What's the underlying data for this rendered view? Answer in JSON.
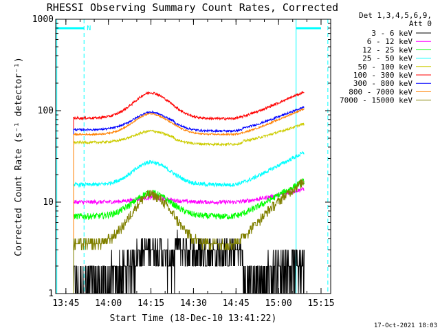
{
  "chart_data": {
    "type": "line",
    "title": "RHESSI Observing Summary Count Rates, Corrected",
    "xlabel": "Start Time (18-Dec-10 13:41:22)",
    "ylabel": "Corrected Count Rate (s⁻¹ detector⁻¹)",
    "yscale": "log",
    "ylim": [
      1,
      1000
    ],
    "xlim_minutes": [
      0,
      97
    ],
    "x_ticks": [
      {
        "label": "13:45",
        "minute": 3.6
      },
      {
        "label": "14:00",
        "minute": 18.6
      },
      {
        "label": "14:15",
        "minute": 33.6
      },
      {
        "label": "14:30",
        "minute": 48.6
      },
      {
        "label": "14:45",
        "minute": 63.6
      },
      {
        "label": "15:00",
        "minute": 78.6
      },
      {
        "label": "15:15",
        "minute": 93.6
      }
    ],
    "y_ticks": [
      {
        "label": "1",
        "value": 1
      },
      {
        "label": "10",
        "value": 10
      },
      {
        "label": "100",
        "value": 100
      },
      {
        "label": "1000",
        "value": 1000
      }
    ],
    "legend_header": [
      "Det 1,3,4,5,6,9,",
      "Att 0"
    ],
    "data_start_minute": 6.3,
    "data_end_minute": 87.7,
    "night_intervals": [
      {
        "start": 0,
        "end": 10.0
      },
      {
        "start": 84.8,
        "end": 97
      }
    ],
    "saa_label": "N",
    "series": [
      {
        "name": "3 - 6 keV",
        "color": "#000000",
        "base": 1.2,
        "mid": 2.8,
        "peak": 3.0,
        "end": 4.0,
        "noise": 0.35
      },
      {
        "name": "6 - 12 keV",
        "color": "#ff00ff",
        "base": 10.0,
        "mid": 10.0,
        "peak": 11.0,
        "end": 14.0,
        "noise": 0.05
      },
      {
        "name": "12 - 25 keV",
        "color": "#00ff00",
        "base": 7.0,
        "mid": 7.0,
        "peak": 12.0,
        "end": 17.0,
        "noise": 0.08
      },
      {
        "name": "25 - 50 keV",
        "color": "#00ffff",
        "base": 15.5,
        "mid": 15.5,
        "peak": 26.0,
        "end": 35.0,
        "noise": 0.05
      },
      {
        "name": "50 - 100 keV",
        "color": "#cccc00",
        "base": 45.0,
        "mid": 43.0,
        "peak": 58.0,
        "end": 70.0,
        "noise": 0.03
      },
      {
        "name": "100 - 300 keV",
        "color": "#ff0000",
        "base": 83.0,
        "mid": 82.0,
        "peak": 148.0,
        "end": 160.0,
        "noise": 0.03
      },
      {
        "name": "300 - 800 keV",
        "color": "#0000ff",
        "base": 62.0,
        "mid": 60.0,
        "peak": 92.0,
        "end": 108.0,
        "noise": 0.025
      },
      {
        "name": "800 - 7000 keV",
        "color": "#ff8000",
        "base": 55.0,
        "mid": 55.0,
        "peak": 88.0,
        "end": 105.0,
        "noise": 0.02
      },
      {
        "name": "7000 - 15000 keV",
        "color": "#808000",
        "base": 3.5,
        "mid": 3.5,
        "peak": 11.0,
        "end": 17.0,
        "noise": 0.12
      }
    ]
  },
  "footer_timestamp": "17-Oct-2021 18:03"
}
